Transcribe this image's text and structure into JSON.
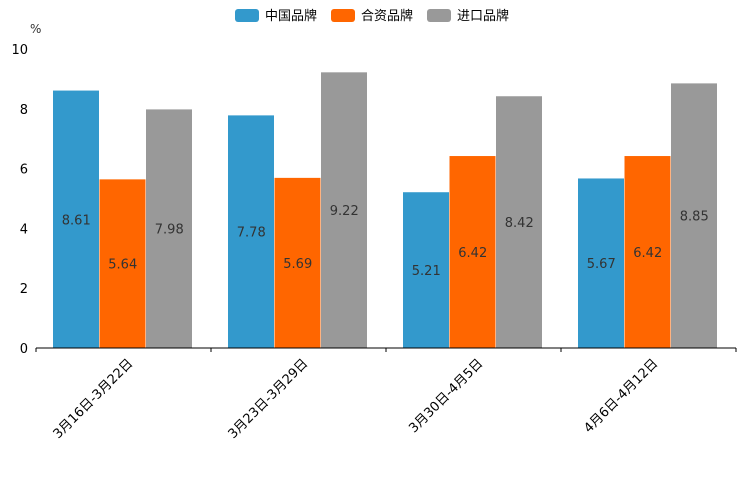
{
  "chart_data": {
    "type": "bar",
    "unit_label": "%",
    "categories": [
      "3月16日-3月22日",
      "3月23日-3月29日",
      "3月30日-4月5日",
      "4月6日-4月12日"
    ],
    "series": [
      {
        "name": "中国品牌",
        "color": "#3399CC",
        "values": [
          8.61,
          7.78,
          5.21,
          5.67
        ],
        "labels": [
          "8.61",
          "7.78",
          "5.21",
          "5.67"
        ]
      },
      {
        "name": "合资品牌",
        "color": "#FF6600",
        "values": [
          5.64,
          5.69,
          6.42,
          6.42
        ],
        "labels": [
          "5.64",
          "5.69",
          "6.42",
          "6.42"
        ]
      },
      {
        "name": "进口品牌",
        "color": "#999999",
        "values": [
          7.98,
          9.22,
          8.42,
          8.85
        ],
        "labels": [
          "7.98",
          "9.22",
          "8.42",
          "8.85"
        ]
      }
    ],
    "ylim": [
      0,
      10
    ],
    "yticks": [
      "0",
      "2",
      "4",
      "6",
      "8",
      "10"
    ],
    "legend_position": "top-center",
    "grid": false
  }
}
